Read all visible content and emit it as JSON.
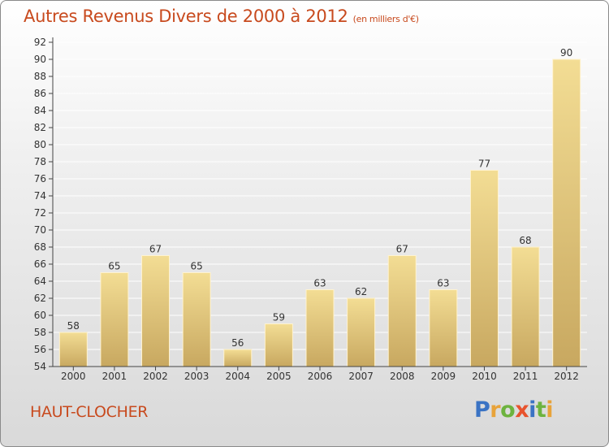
{
  "title": "Autres Revenus Divers de 2000 à 2012",
  "subtitle": "(en milliers d'€)",
  "place": "HAUT-CLOCHER",
  "logo": {
    "letters": [
      "P",
      "r",
      "o",
      "x",
      "i",
      "t",
      "i"
    ],
    "colors": [
      "#3a73c4",
      "#e8a33a",
      "#6db33f",
      "#e8532d",
      "#3a73c4",
      "#6db33f",
      "#e8a33a"
    ]
  },
  "colors": {
    "title": "#c84a1e",
    "bar_light": "#f3dd94",
    "bar_dark": "#c8a860",
    "grid": "#ffffff",
    "axis": "#444444"
  },
  "chart_data": {
    "type": "bar",
    "categories": [
      "2000",
      "2001",
      "2002",
      "2003",
      "2004",
      "2005",
      "2006",
      "2007",
      "2008",
      "2009",
      "2010",
      "2011",
      "2012"
    ],
    "values": [
      58,
      65,
      67,
      65,
      56,
      59,
      63,
      62,
      67,
      63,
      77,
      68,
      90
    ],
    "ylim": [
      54,
      92
    ],
    "ytick_step": 2,
    "grid": true,
    "data_labels": true
  }
}
